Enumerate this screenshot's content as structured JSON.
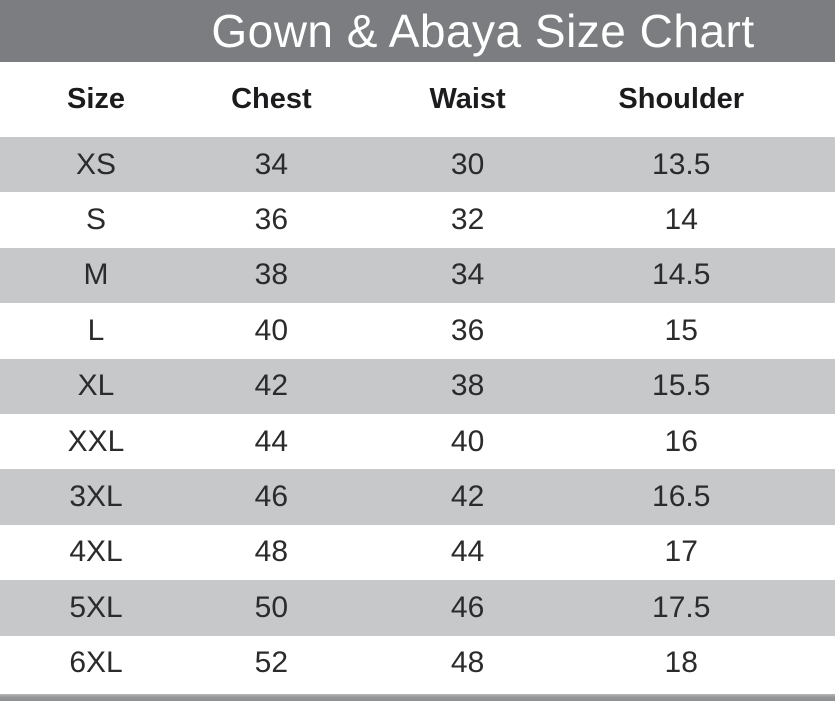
{
  "header": {
    "title": "Gown & Abaya Size Chart"
  },
  "chart_data": {
    "type": "table",
    "title": "Gown & Abaya Size Chart",
    "columns": [
      "Size",
      "Chest",
      "Waist",
      "Shoulder"
    ],
    "rows": [
      [
        "XS",
        "34",
        "30",
        "13.5"
      ],
      [
        "S",
        "36",
        "32",
        "14"
      ],
      [
        "M",
        "38",
        "34",
        "14.5"
      ],
      [
        "L",
        "40",
        "36",
        "15"
      ],
      [
        "XL",
        "42",
        "38",
        "15.5"
      ],
      [
        "XXL",
        "44",
        "40",
        "16"
      ],
      [
        "3XL",
        "46",
        "42",
        "16.5"
      ],
      [
        "4XL",
        "48",
        "44",
        "17"
      ],
      [
        "5XL",
        "50",
        "46",
        "17.5"
      ],
      [
        "6XL",
        "52",
        "48",
        "18"
      ]
    ],
    "layout_hints": {
      "striped_rows": "odd rows shaded",
      "first_shaded_row": "XS"
    }
  },
  "colors": {
    "title_bar_background": "#7b7d80",
    "title_text": "#ffffff",
    "stripe_row_background": "#c7c8ca",
    "plain_row_background": "#ffffff",
    "body_text": "#2b2b2d",
    "footer_bar": "#97989a"
  }
}
